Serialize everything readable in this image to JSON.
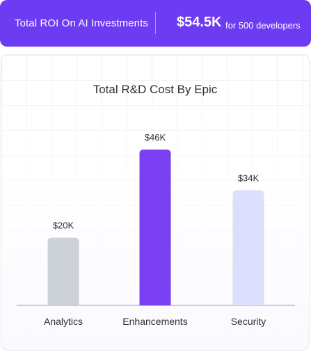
{
  "banner": {
    "title": "Total ROI On AI Investments",
    "value": "$54.5K",
    "caption": "for 500 developers"
  },
  "chart_data": {
    "type": "bar",
    "title": "Total R&D Cost By Epic",
    "categories": [
      "Analytics",
      "Enhancements",
      "Security"
    ],
    "values": [
      20,
      46,
      34
    ],
    "value_labels": [
      "$20K",
      "$46K",
      "$34K"
    ],
    "colors": [
      "#cdd1d8",
      "#7b3ff2",
      "#dedffd"
    ],
    "unit": "$K",
    "ylim": [
      0,
      50
    ],
    "grid": false
  }
}
